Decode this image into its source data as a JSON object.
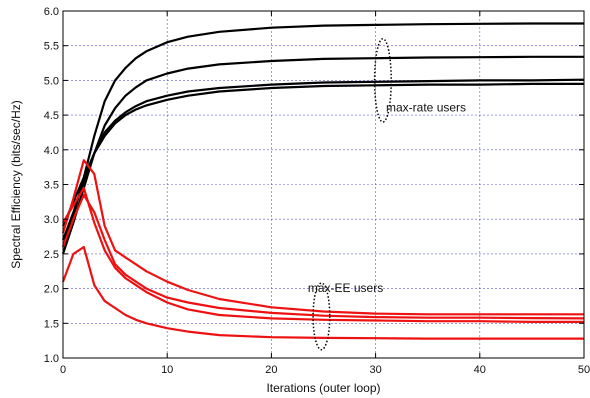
{
  "chart_data": {
    "type": "line",
    "title": "",
    "xlabel": "Iterations (outer loop)",
    "ylabel": "Spectral Efficiency (bits/sec/Hz)",
    "xlim": [
      0,
      50
    ],
    "ylim": [
      1.0,
      6.0
    ],
    "xticks": [
      0,
      10,
      20,
      30,
      40,
      50
    ],
    "yticks": [
      "1.0",
      "1.5",
      "2.0",
      "2.5",
      "3.0",
      "3.5",
      "4.0",
      "4.5",
      "5.0",
      "5.5",
      "6.0"
    ],
    "grid": true,
    "series": [
      {
        "group": "max-rate users",
        "color": "#000000",
        "x": [
          0,
          1,
          2,
          3,
          4,
          5,
          6,
          7,
          8,
          10,
          12,
          15,
          20,
          25,
          30,
          35,
          40,
          45,
          50
        ],
        "y": [
          2.6,
          3.05,
          3.6,
          4.2,
          4.7,
          5.0,
          5.18,
          5.32,
          5.42,
          5.55,
          5.63,
          5.7,
          5.76,
          5.79,
          5.8,
          5.81,
          5.815,
          5.82,
          5.82
        ]
      },
      {
        "group": "max-rate users",
        "color": "#000000",
        "x": [
          0,
          1,
          2,
          3,
          4,
          5,
          6,
          7,
          8,
          10,
          12,
          15,
          20,
          25,
          30,
          35,
          40,
          45,
          50
        ],
        "y": [
          2.5,
          2.95,
          3.45,
          3.95,
          4.35,
          4.6,
          4.78,
          4.9,
          5.0,
          5.1,
          5.17,
          5.23,
          5.28,
          5.31,
          5.32,
          5.33,
          5.335,
          5.34,
          5.34
        ]
      },
      {
        "group": "max-rate users",
        "color": "#000000",
        "x": [
          0,
          1,
          2,
          3,
          4,
          5,
          6,
          7,
          8,
          10,
          12,
          15,
          20,
          25,
          30,
          35,
          40,
          45,
          50
        ],
        "y": [
          2.7,
          3.1,
          3.55,
          3.95,
          4.25,
          4.42,
          4.54,
          4.63,
          4.7,
          4.78,
          4.84,
          4.89,
          4.94,
          4.97,
          4.98,
          4.99,
          5.0,
          5.0,
          5.01
        ]
      },
      {
        "group": "max-rate users",
        "color": "#000000",
        "x": [
          0,
          1,
          2,
          3,
          4,
          5,
          6,
          7,
          8,
          10,
          12,
          15,
          20,
          25,
          30,
          35,
          40,
          45,
          50
        ],
        "y": [
          2.9,
          3.25,
          3.6,
          3.95,
          4.2,
          4.38,
          4.5,
          4.58,
          4.64,
          4.72,
          4.78,
          4.84,
          4.89,
          4.92,
          4.93,
          4.94,
          4.94,
          4.95,
          4.95
        ]
      },
      {
        "group": "max-EE users",
        "color": "#ee1111",
        "x": [
          0,
          1,
          2,
          3,
          4,
          5,
          6,
          8,
          10,
          12,
          15,
          20,
          25,
          30,
          35,
          40,
          45,
          50
        ],
        "y": [
          2.8,
          3.3,
          3.85,
          3.65,
          2.9,
          2.55,
          2.45,
          2.25,
          2.1,
          1.98,
          1.85,
          1.73,
          1.67,
          1.64,
          1.63,
          1.63,
          1.63,
          1.63
        ]
      },
      {
        "group": "max-EE users",
        "color": "#ee1111",
        "x": [
          0,
          1,
          2,
          3,
          4,
          5,
          6,
          8,
          10,
          12,
          15,
          20,
          25,
          30,
          35,
          40,
          45,
          50
        ],
        "y": [
          2.6,
          3.0,
          3.35,
          3.1,
          2.7,
          2.35,
          2.2,
          2.0,
          1.87,
          1.8,
          1.72,
          1.65,
          1.61,
          1.59,
          1.58,
          1.58,
          1.575,
          1.57
        ]
      },
      {
        "group": "max-EE users",
        "color": "#ee1111",
        "x": [
          0,
          1,
          2,
          3,
          4,
          5,
          6,
          8,
          10,
          12,
          15,
          20,
          25,
          30,
          35,
          40,
          45,
          50
        ],
        "y": [
          2.95,
          3.2,
          3.45,
          2.95,
          2.55,
          2.3,
          2.15,
          1.95,
          1.8,
          1.7,
          1.62,
          1.57,
          1.55,
          1.54,
          1.53,
          1.53,
          1.52,
          1.52
        ]
      },
      {
        "group": "max-EE users",
        "color": "#ee1111",
        "x": [
          0,
          1,
          2,
          3,
          4,
          5,
          6,
          7,
          8,
          10,
          12,
          15,
          20,
          25,
          30,
          35,
          40,
          45,
          50
        ],
        "y": [
          2.1,
          2.5,
          2.6,
          2.05,
          1.82,
          1.72,
          1.62,
          1.55,
          1.5,
          1.43,
          1.38,
          1.33,
          1.3,
          1.29,
          1.285,
          1.28,
          1.28,
          1.28,
          1.28
        ]
      }
    ],
    "annotations": [
      {
        "text": "max-rate users",
        "x": 31,
        "y": 4.55
      },
      {
        "text": "max-EE users",
        "x": 23.5,
        "y": 1.95
      }
    ],
    "ellipses": [
      {
        "cx": 30.7,
        "cy": 5.0,
        "rx": 0.8,
        "ry": 0.6
      },
      {
        "cx": 24.8,
        "cy": 1.6,
        "rx": 0.8,
        "ry": 0.48
      }
    ]
  }
}
